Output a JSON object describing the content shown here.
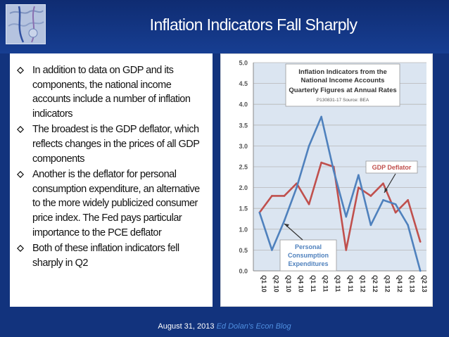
{
  "slide": {
    "title": "Inflation Indicators Fall Sharply",
    "footer_date": "August 31, 2013",
    "footer_blog": "Ed Dolan's Econ Blog"
  },
  "bullets": [
    "In addition to data on GDP and its components, the national income accounts include a number of inflation indicators",
    "The broadest is the GDP deflator, which reflects changes in the prices of all GDP components",
    "Another is the deflator for personal consumption expenditure, an alternative to the more widely publicized consumer price index. The Fed pays particular importance to the PCE deflator",
    "Both of these inflation indicators fell sharply in Q2"
  ],
  "colors": {
    "background": "#12337d",
    "gdp_deflator": "#c0504d",
    "pce": "#4f81bd",
    "chart_plot_bg": "#dbe5f1"
  },
  "icons": {
    "bullet": "hollow-diamond-icon",
    "logo": "globe-map-icon"
  },
  "chart_data": {
    "type": "line",
    "title": "Inflation Indicators from the National Income Accounts",
    "subtitle": "Quarterly Figures at Annual Rates",
    "note": "P130831-17 Source: BEA",
    "categories": [
      "Q1 10",
      "Q2 10",
      "Q3 10",
      "Q4 10",
      "Q1 11",
      "Q2 11",
      "Q3 11",
      "Q4 11",
      "Q1 12",
      "Q2 12",
      "Q3 12",
      "Q4 12",
      "Q1 13",
      "Q2 13"
    ],
    "y_ticks": [
      "0.0",
      "0.5",
      "1.0",
      "1.5",
      "2.0",
      "2.5",
      "3.0",
      "3.5",
      "4.0",
      "4.5",
      "5.0"
    ],
    "ylim": [
      0,
      5
    ],
    "grid": true,
    "legend": "none",
    "series": [
      {
        "name": "GDP Deflator",
        "color": "#c0504d",
        "values": [
          1.4,
          1.8,
          1.8,
          2.1,
          1.6,
          2.6,
          2.5,
          0.5,
          2.0,
          1.8,
          2.1,
          1.4,
          1.7,
          0.7
        ]
      },
      {
        "name": "Personal Consumption Expenditures",
        "color": "#4f81bd",
        "values": [
          1.4,
          0.5,
          1.2,
          2.0,
          3.0,
          3.7,
          2.4,
          1.3,
          2.3,
          1.1,
          1.7,
          1.6,
          1.1,
          0.0
        ]
      }
    ]
  }
}
